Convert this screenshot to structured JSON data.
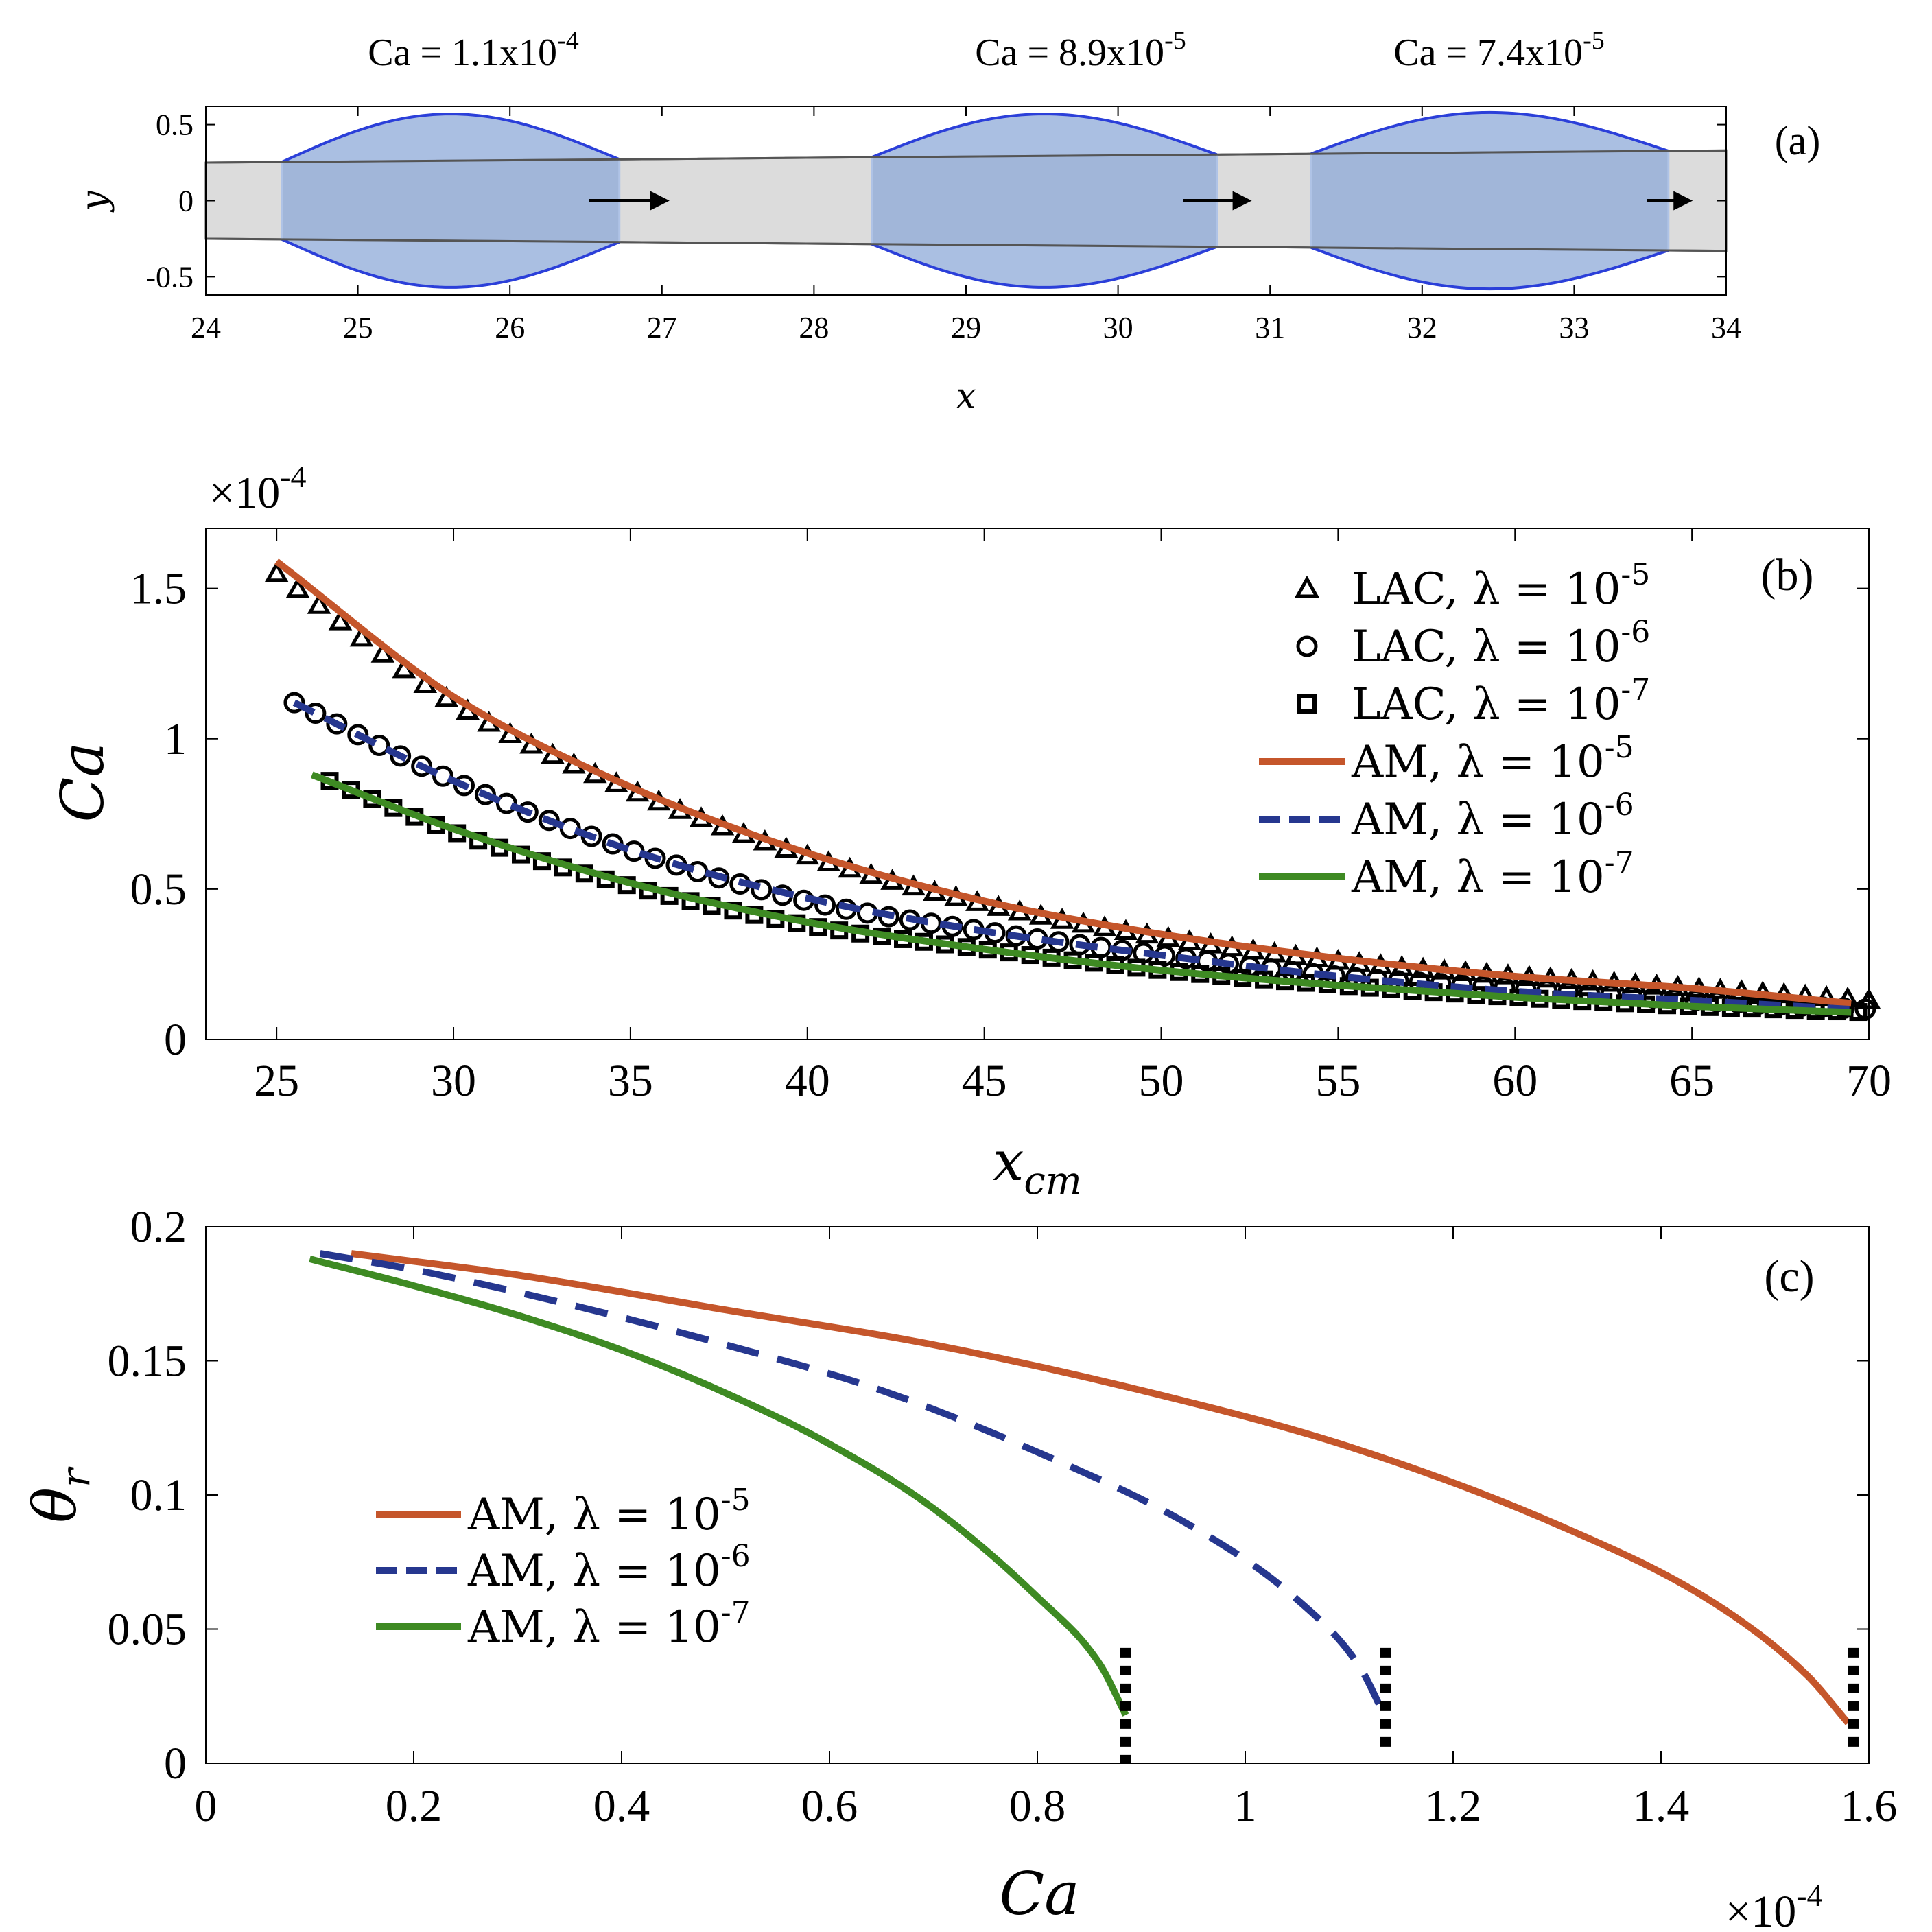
{
  "colors": {
    "lambda5": "#C5562B",
    "lambda6": "#26378F",
    "lambda7": "#3E8A23",
    "droplet_fill": "#8EAAD8",
    "droplet_edge": "#2B3FD9",
    "channel_fill": "#DCDCDC",
    "channel_edge": "#555555",
    "axis": "#000000"
  },
  "chart_data": [
    {
      "panel": "(a)",
      "type": "diagram",
      "title_labels": [
        "Ca = 1.1x10-4",
        "Ca = 8.9x10-5",
        "Ca = 7.4x10-5"
      ],
      "ca_text": [
        {
          "base": "Ca = 1.1x10",
          "exp": "-4"
        },
        {
          "base": "Ca = 8.9x10",
          "exp": "-5"
        },
        {
          "base": "Ca = 7.4x10",
          "exp": "-5"
        }
      ],
      "xlabel": "x",
      "ylabel": "y",
      "xlim": [
        24,
        34
      ],
      "ylim": [
        -0.62,
        0.62
      ],
      "xticks": [
        24,
        25,
        26,
        27,
        28,
        29,
        30,
        31,
        32,
        33,
        34
      ],
      "xtick_labels": [
        "24",
        "25",
        "26",
        "27",
        "28",
        "29",
        "30",
        "31",
        "32",
        "33",
        "34"
      ],
      "yticks": [
        0.5,
        0,
        -0.5
      ],
      "ytick_labels": [
        "0.5",
        "0",
        "-0.5"
      ],
      "channel": {
        "x_start": 24,
        "x_end": 34,
        "top_start": 0.25,
        "top_end": 0.33,
        "bot_start": -0.25,
        "bot_end": -0.33
      },
      "droplets": [
        {
          "x_left": 24.5,
          "x_right": 26.72,
          "peak": 0.57
        },
        {
          "x_left": 28.38,
          "x_right": 30.65,
          "peak": 0.57
        },
        {
          "x_left": 31.27,
          "x_right": 33.62,
          "peak": 0.58
        }
      ],
      "arrows": [
        {
          "x_from": 26.52,
          "x_to": 27.05,
          "y": 0
        },
        {
          "x_from": 30.43,
          "x_to": 30.88,
          "y": 0
        },
        {
          "x_from": 33.48,
          "x_to": 33.78,
          "y": 0
        }
      ]
    },
    {
      "panel": "(b)",
      "type": "line",
      "xlabel": "x",
      "xlabel_sub": "cm",
      "ylabel": "Ca",
      "exponent": "×10",
      "exponent_power": "-4",
      "xlim": [
        23,
        70
      ],
      "ylim": [
        0,
        1.7
      ],
      "xticks": [
        25,
        30,
        35,
        40,
        45,
        50,
        55,
        60,
        65,
        70
      ],
      "xtick_labels": [
        "25",
        "30",
        "35",
        "40",
        "45",
        "50",
        "55",
        "60",
        "65",
        "70"
      ],
      "yticks": [
        0,
        0.5,
        1,
        1.5
      ],
      "ytick_labels": [
        "0",
        "0.5",
        "1",
        "1.5"
      ],
      "legend_position": "top-right",
      "series": [
        {
          "name": "LAC, λ = 10",
          "power": "-5",
          "kind": "markers",
          "marker": "triangle",
          "x": [
            25,
            30,
            35,
            40,
            45,
            50,
            55,
            60,
            65,
            70
          ],
          "values": [
            1.55,
            1.12,
            0.83,
            0.61,
            0.45,
            0.34,
            0.26,
            0.21,
            0.17,
            0.13
          ]
        },
        {
          "name": "LAC, λ = 10",
          "power": "-6",
          "kind": "markers",
          "marker": "circle",
          "x": [
            25.5,
            30,
            35,
            40,
            45,
            50,
            55,
            60,
            65,
            70
          ],
          "values": [
            1.12,
            0.86,
            0.63,
            0.46,
            0.36,
            0.28,
            0.21,
            0.17,
            0.13,
            0.1
          ]
        },
        {
          "name": "LAC, λ = 10",
          "power": "-7",
          "kind": "markers",
          "marker": "square",
          "x": [
            26.5,
            30,
            35,
            40,
            45,
            50,
            55,
            60,
            65,
            70
          ],
          "values": [
            0.86,
            0.69,
            0.51,
            0.38,
            0.3,
            0.23,
            0.18,
            0.14,
            0.11,
            0.09
          ]
        },
        {
          "name": "AM, λ = 10",
          "power": "-5",
          "kind": "line",
          "style": "solid",
          "color_key": "lambda5",
          "x": [
            25,
            30,
            35,
            40,
            45,
            50,
            55,
            60,
            65,
            69.5
          ],
          "values": [
            1.59,
            1.14,
            0.84,
            0.62,
            0.46,
            0.35,
            0.27,
            0.21,
            0.17,
            0.12
          ]
        },
        {
          "name": "AM, λ = 10",
          "power": "-6",
          "kind": "line",
          "style": "dashed",
          "color_key": "lambda6",
          "x": [
            25.5,
            30,
            35,
            40,
            45,
            50,
            55,
            60,
            65,
            69.5
          ],
          "values": [
            1.12,
            0.86,
            0.63,
            0.47,
            0.36,
            0.28,
            0.21,
            0.16,
            0.13,
            0.1
          ]
        },
        {
          "name": "AM, λ = 10",
          "power": "-7",
          "kind": "line",
          "style": "solid",
          "color_key": "lambda7",
          "x": [
            26,
            30,
            35,
            40,
            45,
            50,
            55,
            60,
            65,
            69.5
          ],
          "values": [
            0.88,
            0.7,
            0.52,
            0.39,
            0.3,
            0.23,
            0.18,
            0.14,
            0.11,
            0.09
          ]
        }
      ]
    },
    {
      "panel": "(c)",
      "type": "line",
      "xlabel": "Ca",
      "ylabel": "θ",
      "ylabel_sub": "r",
      "exponent": "×10",
      "exponent_power": "-4",
      "xlim": [
        0,
        1.6
      ],
      "ylim": [
        0,
        0.2
      ],
      "xticks": [
        0,
        0.2,
        0.4,
        0.6,
        0.8,
        1,
        1.2,
        1.4,
        1.6
      ],
      "xtick_labels": [
        "0",
        "0.2",
        "0.4",
        "0.6",
        "0.8",
        "1",
        "1.2",
        "1.4",
        "1.6"
      ],
      "yticks": [
        0,
        0.05,
        0.1,
        0.15,
        0.2
      ],
      "ytick_labels": [
        "0",
        "0.05",
        "0.1",
        "0.15",
        "0.2"
      ],
      "legend_position": "center-left",
      "series": [
        {
          "name": "AM, λ = 10",
          "power": "-5",
          "style": "solid",
          "color_key": "lambda5",
          "x": [
            0.14,
            0.3,
            0.5,
            0.7,
            0.9,
            1.1,
            1.3,
            1.45,
            1.54,
            1.58
          ],
          "values": [
            0.19,
            0.182,
            0.169,
            0.156,
            0.139,
            0.118,
            0.089,
            0.06,
            0.033,
            0.015
          ]
        },
        {
          "name": "AM, λ = 10",
          "power": "-6",
          "style": "dashed",
          "color_key": "lambda6",
          "x": [
            0.11,
            0.2,
            0.35,
            0.5,
            0.65,
            0.8,
            0.95,
            1.05,
            1.11,
            1.135
          ],
          "values": [
            0.19,
            0.184,
            0.171,
            0.156,
            0.139,
            0.116,
            0.088,
            0.061,
            0.036,
            0.017
          ]
        },
        {
          "name": "AM, λ = 10",
          "power": "-7",
          "style": "solid",
          "color_key": "lambda7",
          "x": [
            0.1,
            0.2,
            0.3,
            0.4,
            0.5,
            0.6,
            0.7,
            0.8,
            0.86,
            0.885
          ],
          "values": [
            0.188,
            0.178,
            0.167,
            0.154,
            0.138,
            0.119,
            0.095,
            0.062,
            0.037,
            0.018
          ]
        }
      ],
      "vertical_markers": [
        {
          "x": 0.885,
          "y_range": [
            0.0,
            0.043
          ]
        },
        {
          "x": 1.135,
          "y_range": [
            0.005,
            0.043
          ]
        },
        {
          "x": 1.585,
          "y_range": [
            0.005,
            0.043
          ]
        }
      ]
    }
  ]
}
